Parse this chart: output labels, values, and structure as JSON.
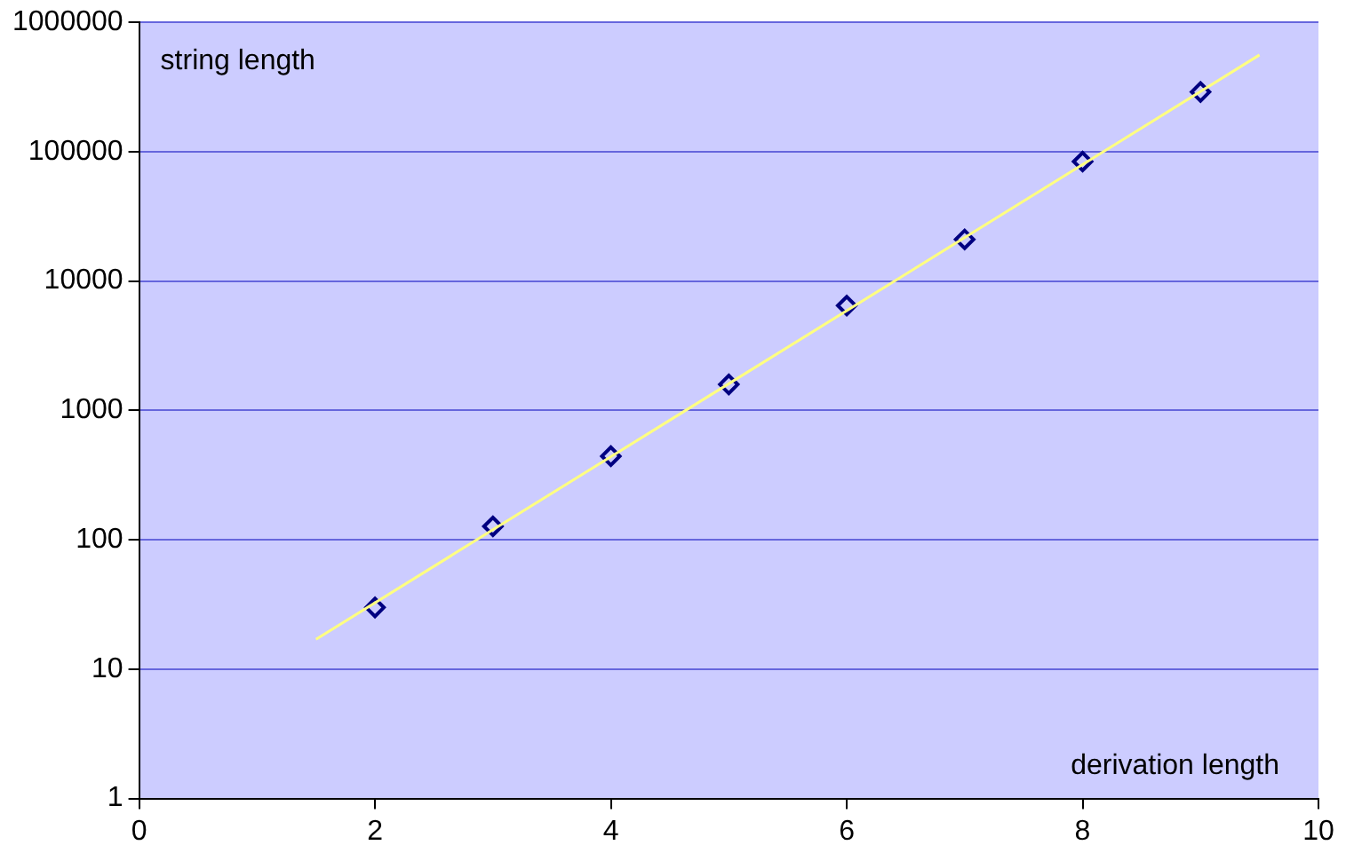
{
  "chart_data": {
    "type": "scatter",
    "xlabel": "derivation length",
    "ylabel": "string length",
    "series": [
      {
        "color": "#000080",
        "marker": "diamond",
        "x": [
          2,
          3,
          4,
          5,
          6,
          7,
          8,
          9
        ],
        "values": [
          30,
          127,
          443,
          1590,
          6470,
          21000,
          84000,
          290000
        ]
      },
      {
        "type": "line",
        "color": "#ffff80",
        "marker": "none",
        "x": [
          1.5,
          9.5
        ],
        "values": [
          17,
          560000
        ]
      }
    ],
    "xlim": [
      0,
      10
    ],
    "xticks": [
      0,
      2,
      4,
      6,
      8,
      10
    ],
    "ylim": [
      1,
      1000000
    ],
    "yticks": [
      1,
      10,
      100,
      1000,
      10000,
      100000,
      1000000
    ],
    "log": "y",
    "grid": "y",
    "legend": false
  }
}
